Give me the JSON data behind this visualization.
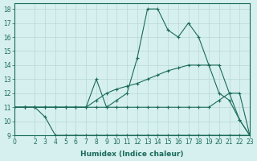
{
  "line1_x": [
    0,
    1,
    2,
    3,
    4,
    5,
    6,
    7,
    8,
    9,
    10,
    11,
    12,
    13,
    14,
    15,
    16,
    17,
    18,
    19,
    20,
    21,
    22,
    23
  ],
  "line1_y": [
    11.0,
    11.0,
    11.0,
    10.3,
    9.0,
    9.0,
    9.0,
    9.0,
    9.0,
    9.0,
    9.0,
    9.0,
    9.0,
    9.0,
    9.0,
    9.0,
    9.0,
    9.0,
    9.0,
    9.0,
    9.0,
    9.0,
    9.0,
    9.0
  ],
  "line2_x": [
    0,
    1,
    2,
    3,
    4,
    5,
    6,
    7,
    8,
    9,
    10,
    11,
    12,
    13,
    14,
    15,
    16,
    17,
    18,
    19,
    20,
    21,
    22,
    23
  ],
  "line2_y": [
    11.0,
    11.0,
    11.0,
    11.0,
    11.0,
    11.0,
    11.0,
    11.0,
    11.0,
    11.0,
    11.0,
    11.0,
    11.0,
    11.0,
    11.0,
    11.0,
    11.0,
    11.0,
    11.0,
    11.0,
    11.5,
    12.0,
    12.0,
    9.0
  ],
  "line3_x": [
    0,
    1,
    2,
    3,
    4,
    5,
    6,
    7,
    8,
    9,
    10,
    11,
    12,
    13,
    14,
    15,
    16,
    17,
    18,
    19,
    20,
    21,
    22,
    23
  ],
  "line3_y": [
    11.0,
    11.0,
    11.0,
    11.0,
    11.0,
    11.0,
    11.0,
    11.0,
    11.5,
    12.0,
    12.3,
    12.5,
    12.7,
    13.0,
    13.3,
    13.6,
    13.8,
    14.0,
    14.0,
    14.0,
    14.0,
    12.0,
    10.1,
    9.0
  ],
  "line4_x": [
    0,
    1,
    2,
    3,
    4,
    5,
    6,
    7,
    8,
    9,
    10,
    11,
    12,
    13,
    14,
    15,
    16,
    17,
    18,
    19,
    20,
    21,
    22,
    23
  ],
  "line4_y": [
    11.0,
    11.0,
    11.0,
    11.0,
    11.0,
    11.0,
    11.0,
    11.0,
    13.0,
    11.0,
    11.5,
    12.0,
    14.5,
    18.0,
    18.0,
    16.5,
    16.0,
    17.0,
    16.0,
    14.0,
    12.0,
    11.5,
    10.1,
    9.0
  ],
  "color": "#1a6b5a",
  "bg_color": "#d6efef",
  "grid_color": "#b8d8d8",
  "xlabel": "Humidex (Indice chaleur)",
  "xlim": [
    0,
    23
  ],
  "ylim": [
    9,
    18.4
  ],
  "yticks": [
    9,
    10,
    11,
    12,
    13,
    14,
    15,
    16,
    17,
    18
  ],
  "xticks": [
    0,
    2,
    3,
    4,
    5,
    6,
    7,
    8,
    9,
    10,
    11,
    12,
    13,
    14,
    15,
    16,
    17,
    18,
    19,
    20,
    21,
    22,
    23
  ]
}
